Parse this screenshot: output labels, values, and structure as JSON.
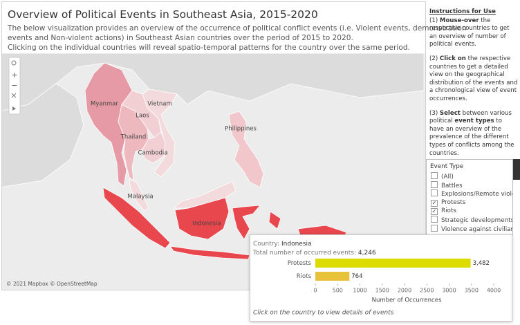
{
  "header": {
    "title": "Overview of Political Events in Southeast Asia, 2015-2020",
    "description": [
      "The below visualization provides an overview of the occurrence of political conflict events (i.e. Violent events, demonstration",
      "events and Non-violent actions) in Southeast Asian countries over the period of 2015 to 2020.",
      "Clicking on the individual countries will reveal spatio-temporal patterns for the country  over the same period."
    ]
  },
  "map": {
    "labels": [
      "Myanmar",
      "Vietnam",
      "Laos",
      "Thailand",
      "Cambodia",
      "Philippines",
      "Malaysia",
      "Indonesia"
    ],
    "attribution": "© 2021 Mapbox © OpenStreetMap"
  },
  "instructions": {
    "title": "Instructions for Use",
    "items": [
      [
        "(1) ",
        "Mouse-over",
        " the respective countries to get an overview of number of political events."
      ],
      [
        "(2) ",
        "Click on",
        " the respective countries to get a detailed view on the geographical distribution of the events and a chronological view of event occurrences."
      ],
      [
        "(3) ",
        "Select",
        " between various political ",
        "event types",
        " to have an overview of the prevalence of the different types of conflicts among the countries."
      ]
    ]
  },
  "filter": {
    "title": "Event Type",
    "options": [
      {
        "label": "(All)",
        "checked": false
      },
      {
        "label": "Battles",
        "checked": false
      },
      {
        "label": "Explosions/Remote viole...",
        "checked": false
      },
      {
        "label": "Protests",
        "checked": true
      },
      {
        "label": "Riots",
        "checked": true
      },
      {
        "label": "Strategic developments",
        "checked": false
      },
      {
        "label": "Violence against civilians",
        "checked": false
      }
    ]
  },
  "tooltip": {
    "country_label": "Country:",
    "country": "Indonesia",
    "total_label": "Total number of occurred events:",
    "total": "4,246",
    "footer": "Click  on the country to view details of events"
  },
  "chart_data": {
    "type": "bar",
    "orientation": "horizontal",
    "categories": [
      "Protests",
      "Riots"
    ],
    "values": [
      3482,
      764
    ],
    "value_labels": [
      "3,482",
      "764"
    ],
    "colors": [
      "#dcdc00",
      "#e8c23a"
    ],
    "xlim": [
      0,
      4000
    ],
    "xticks": [
      0,
      500,
      1000,
      1500,
      2000,
      2500,
      3000,
      3500,
      4000
    ],
    "x_label": "Number of Occurrences"
  }
}
